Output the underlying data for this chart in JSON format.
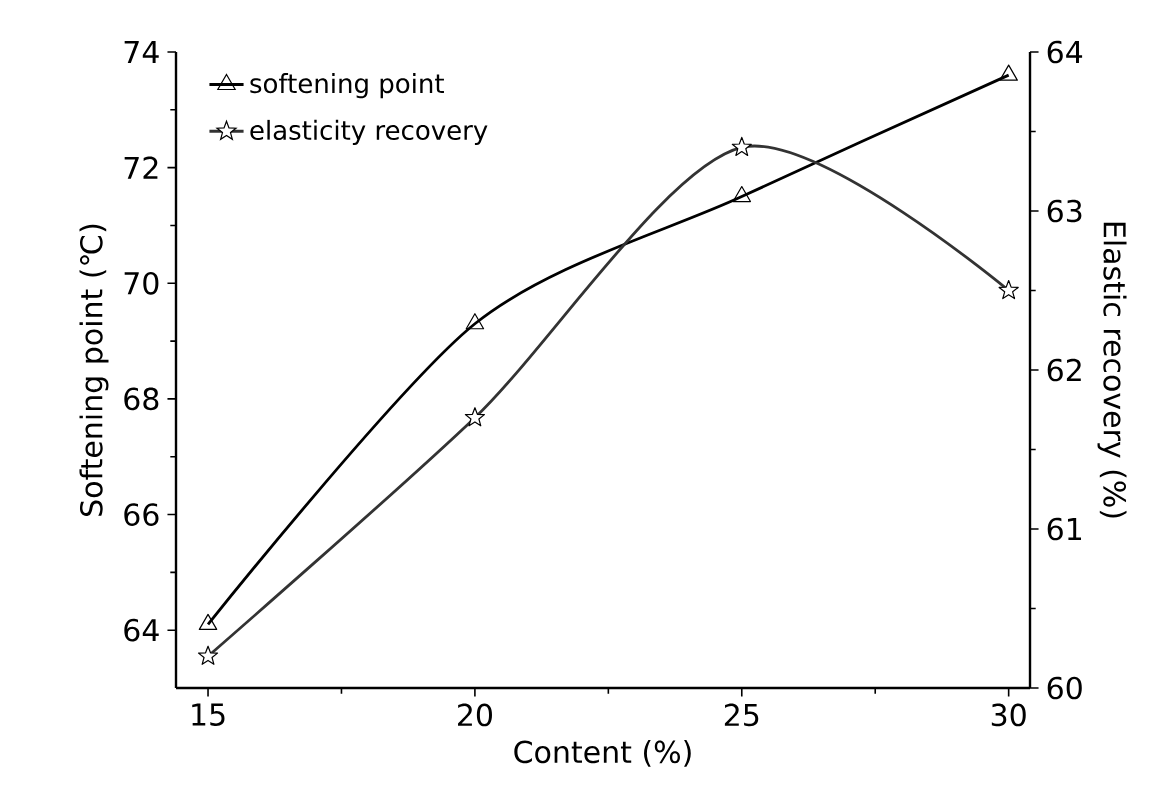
{
  "chart_data": {
    "type": "line",
    "xlabel": "Content (%)",
    "ylabel": "Softening point (℃)",
    "y2label": "Elastic recovery (%)",
    "x": [
      15,
      20,
      25,
      30
    ],
    "series": [
      {
        "name": "softening point",
        "color": "#000000",
        "values": [
          64.1,
          69.3,
          71.5,
          73.6
        ],
        "marker": "triangle"
      },
      {
        "name": "elasticity recovery",
        "color": "#333333",
        "values": [
          60.2,
          61.7,
          63.4,
          62.5
        ],
        "marker": "star",
        "axis": "y2"
      }
    ],
    "xlim": [
      14.4,
      30.4
    ],
    "xticks": [
      15,
      20,
      25,
      30
    ],
    "ylim": [
      63,
      74
    ],
    "yticks": [
      64,
      66,
      68,
      70,
      72,
      74
    ],
    "y2lim": [
      60,
      64
    ],
    "y2ticks": [
      60,
      61,
      62,
      63,
      64
    ],
    "legend": "top left",
    "grid": false,
    "line_style": "solid"
  }
}
